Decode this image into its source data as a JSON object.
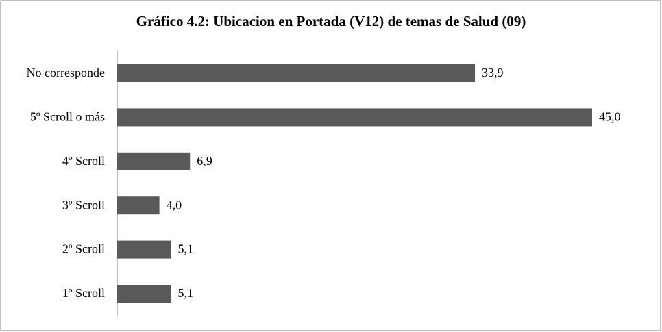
{
  "chart_data": {
    "type": "bar",
    "orientation": "horizontal",
    "title": "Gráfico 4.2: Ubicacion en Portada (V12) de temas de Salud (09)",
    "categories": [
      "No corresponde",
      "5º Scroll o más",
      "4º Scroll",
      "3º Scroll",
      "2º Scroll",
      "1º Scroll"
    ],
    "values": [
      33.9,
      45.0,
      6.9,
      4.0,
      5.1,
      5.1
    ],
    "value_labels": [
      "33,9",
      "45,0",
      "6,9",
      "4,0",
      "5,1",
      "5,1"
    ],
    "color": "#595959"
  }
}
